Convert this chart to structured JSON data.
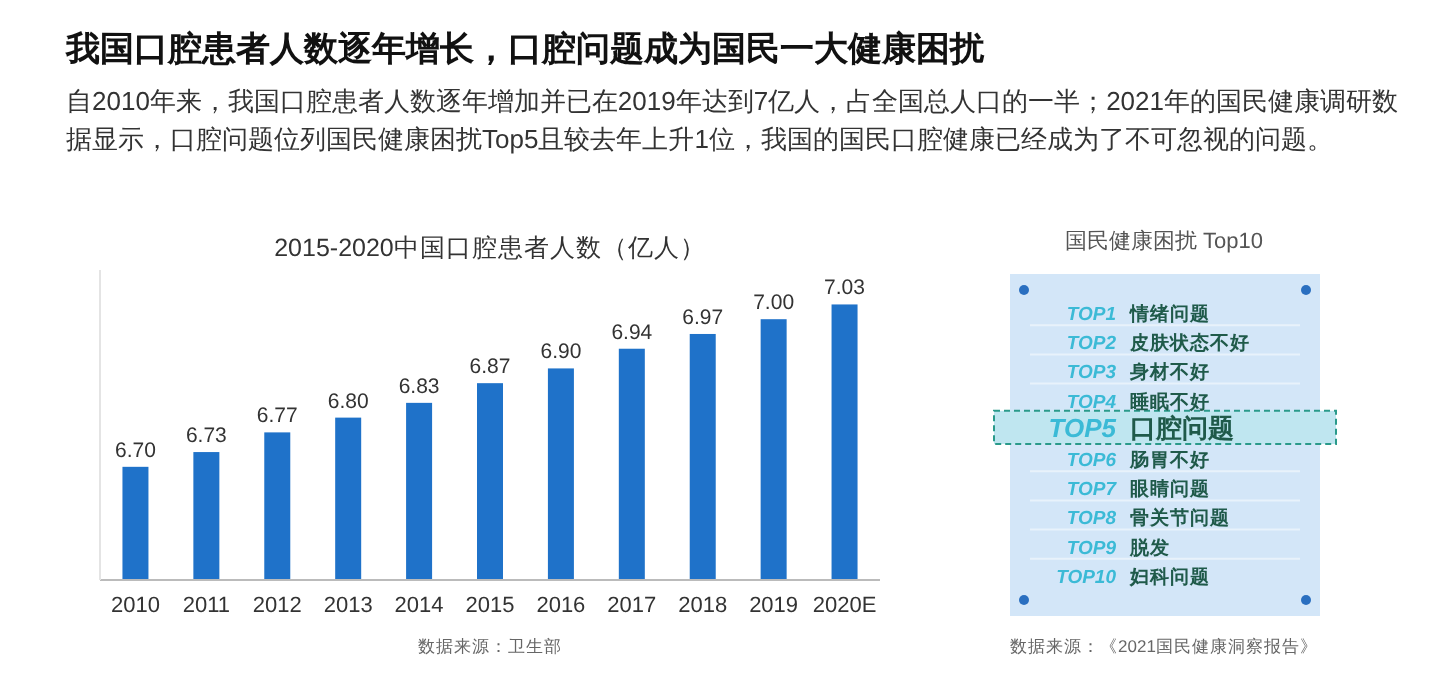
{
  "chart_data": [
    {
      "type": "other",
      "title": "我国口腔患者人数逐年增长，口腔问题成为国民一大健康困扰",
      "subtitle": "自2010年来，我国口腔患者人数逐年增加并已在2019年达到7亿人，占全国总人口的一半；2021年的国民健康调研数据显示，口腔问题位列国民健康困扰Top5且较去年上升1位，我国的国民口腔健康已经成为了不可忽视的问题。"
    },
    {
      "type": "bar",
      "title": "2015-2020中国口腔患者人数（亿人）",
      "categories": [
        "2010",
        "2011",
        "2012",
        "2013",
        "2014",
        "2015",
        "2016",
        "2017",
        "2018",
        "2019",
        "2020E"
      ],
      "values": [
        6.7,
        6.73,
        6.77,
        6.8,
        6.83,
        6.87,
        6.9,
        6.94,
        6.97,
        7.0,
        7.03
      ],
      "value_labels": [
        "6.70",
        "6.73",
        "6.77",
        "6.80",
        "6.83",
        "6.87",
        "6.90",
        "6.94",
        "6.97",
        "7.00",
        "7.03"
      ],
      "color": "#1f72c9",
      "ylim": [
        6.47,
        7.1
      ],
      "tick_labels": "x",
      "annotations": [
        "数据来源：卫生部"
      ]
    },
    {
      "type": "other",
      "title": "国民健康困扰 Top10",
      "categories": [
        "TOP1",
        "TOP2",
        "TOP3",
        "TOP4",
        "TOP5",
        "TOP6",
        "TOP7",
        "TOP8",
        "TOP9",
        "TOP10"
      ],
      "y2_categories": [
        "情绪问题",
        "皮肤状态不好",
        "身材不好",
        "睡眠不好",
        "口腔问题",
        "肠胃不好",
        "眼睛问题",
        "骨关节问题",
        "脱发",
        "妇科问题"
      ],
      "colors": [
        null,
        null,
        null,
        null,
        "#bfe6f0",
        null,
        null,
        null,
        null,
        null
      ],
      "annotations": [
        "数据来源：《2021国民健康洞察报告》"
      ]
    }
  ]
}
